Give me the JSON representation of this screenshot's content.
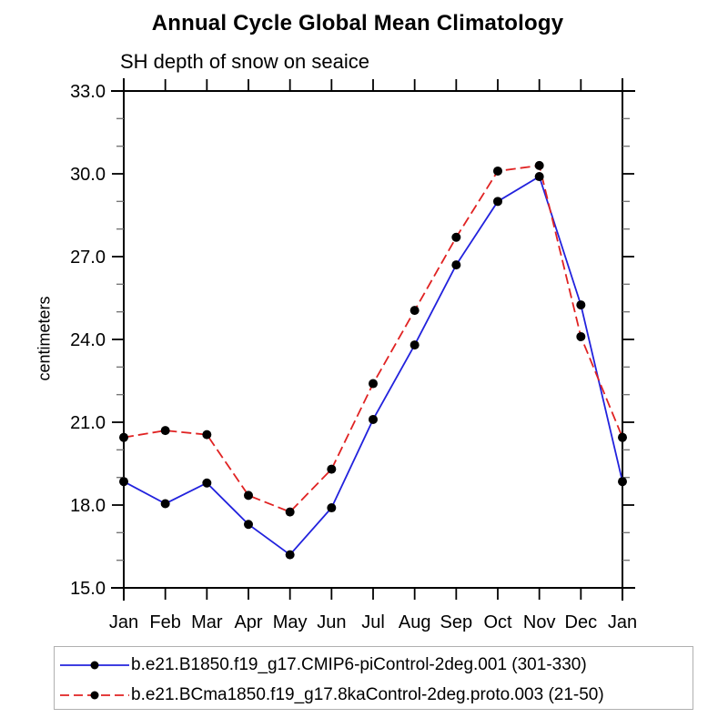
{
  "title": "Annual Cycle Global Mean Climatology",
  "subtitle": "SH depth of snow on seaice",
  "chart_data": {
    "type": "line",
    "categories": [
      "Jan",
      "Feb",
      "Mar",
      "Apr",
      "May",
      "Jun",
      "Jul",
      "Aug",
      "Sep",
      "Oct",
      "Nov",
      "Dec",
      "Jan"
    ],
    "xlabel": "",
    "ylabel": "centimeters",
    "ylim": [
      15.0,
      33.0
    ],
    "ytick_major": [
      15.0,
      18.0,
      21.0,
      24.0,
      27.0,
      30.0,
      33.0
    ],
    "ytick_labels": [
      "15.0",
      "18.0",
      "21.0",
      "24.0",
      "27.0",
      "30.0",
      "33.0"
    ],
    "ytick_minor_step": 1.0,
    "grid": false,
    "legend_position": "bottom",
    "axis_color": "#000000",
    "minor_tick_color": "#777777",
    "marker_color": "#000000",
    "series": [
      {
        "name": "b.e21.B1850.f19_g17.CMIP6-piControl-2deg.001 (301-330)",
        "color": "#2222dd",
        "style": "solid",
        "marker": "circle",
        "values": [
          18.85,
          18.05,
          18.8,
          17.3,
          16.2,
          17.9,
          21.1,
          23.8,
          26.7,
          29.0,
          29.9,
          25.25,
          18.85
        ]
      },
      {
        "name": "b.e21.BCma1850.f19_g17.8kaControl-2deg.proto.003 (21-50)",
        "color": "#e02222",
        "style": "dashed",
        "marker": "circle",
        "values": [
          20.45,
          20.7,
          20.55,
          18.35,
          17.75,
          19.3,
          22.4,
          25.05,
          27.7,
          30.1,
          30.3,
          24.1,
          20.45
        ]
      }
    ]
  }
}
